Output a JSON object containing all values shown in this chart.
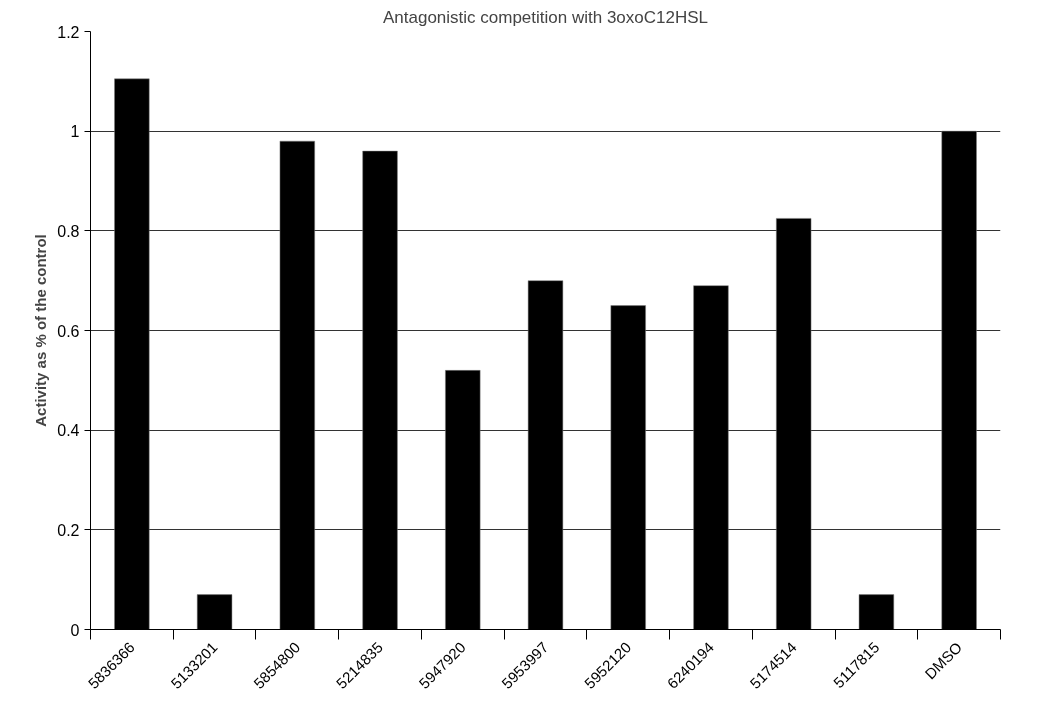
{
  "chart_data": {
    "type": "bar",
    "title": "Antagonistic competition with 3oxoC12HSL",
    "ylabel": "Activity as % of the control",
    "categories": [
      "5836366",
      "5133201",
      "5854800",
      "5214835",
      "5947920",
      "5953997",
      "5952120",
      "6240194",
      "5174514",
      "5117815",
      "DMSO"
    ],
    "values": [
      1.105,
      0.07,
      0.98,
      0.96,
      0.52,
      0.7,
      0.65,
      0.69,
      0.825,
      0.07,
      1.0
    ],
    "color": "#000000",
    "ylim": [
      0,
      1.2
    ],
    "yticks": [
      0,
      0.2,
      0.4,
      0.6,
      0.8,
      1,
      1.2
    ],
    "grid": "y"
  }
}
